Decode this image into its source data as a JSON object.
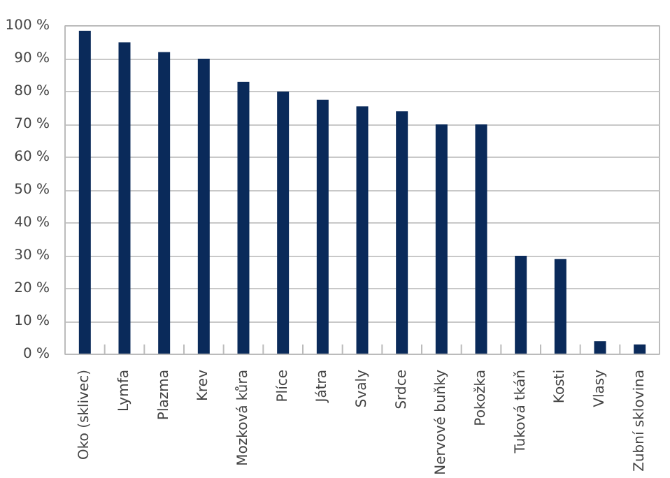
{
  "chart_data": {
    "type": "bar",
    "categories": [
      "Oko (sklivec)",
      "Lymfa",
      "Plazma",
      "Krev",
      "Mozková kůra",
      "Plíce",
      "Játra",
      "Svaly",
      "Srdce",
      "Nervové buňky",
      "Pokožka",
      "Tuková tkáň",
      "Kosti",
      "Vlasy",
      "Zubní sklovina"
    ],
    "values": [
      98.5,
      95,
      92,
      90,
      83,
      80,
      77.5,
      75.5,
      74,
      70,
      70,
      30,
      29,
      4,
      3
    ],
    "color": "#0a2a5a",
    "ylim": [
      0,
      100
    ],
    "yticks": [
      {
        "value": 0,
        "label": "0 %"
      },
      {
        "value": 10,
        "label": "10 %"
      },
      {
        "value": 20,
        "label": "20 %"
      },
      {
        "value": 30,
        "label": "30 %"
      },
      {
        "value": 40,
        "label": "40 %"
      },
      {
        "value": 50,
        "label": "50 %"
      },
      {
        "value": 60,
        "label": "60 %"
      },
      {
        "value": 70,
        "label": "70 %"
      },
      {
        "value": 80,
        "label": "80 %"
      },
      {
        "value": 90,
        "label": "90 %"
      },
      {
        "value": 100,
        "label": "100 %"
      }
    ],
    "grid": "y"
  }
}
